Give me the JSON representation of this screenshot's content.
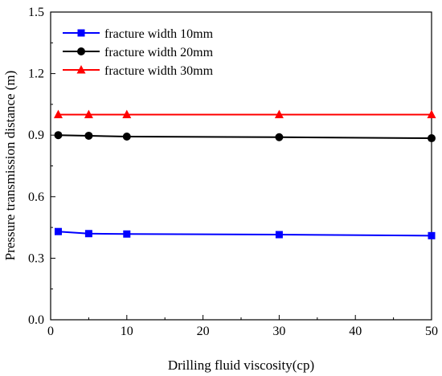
{
  "chart_data": {
    "type": "line",
    "title": "",
    "xlabel": "Drilling fluid viscosity(cp)",
    "ylabel": "Pressure transmission distance (m)",
    "xlim": [
      0,
      50
    ],
    "ylim": [
      0.0,
      1.5
    ],
    "xticks": [
      "0",
      "10",
      "20",
      "30",
      "40",
      "50"
    ],
    "yticks": [
      "0.0",
      "0.3",
      "0.6",
      "0.9",
      "1.2",
      "1.5"
    ],
    "grid": false,
    "legend_position": "top-left",
    "series": [
      {
        "name": "fracture width 10mm",
        "color": "#0000ff",
        "marker": "square",
        "x": [
          1,
          5,
          10,
          30,
          50
        ],
        "y": [
          0.43,
          0.42,
          0.418,
          0.415,
          0.41
        ]
      },
      {
        "name": "fracture width 20mm",
        "color": "#000000",
        "marker": "circle",
        "x": [
          1,
          5,
          10,
          30,
          50
        ],
        "y": [
          0.9,
          0.897,
          0.893,
          0.89,
          0.885
        ]
      },
      {
        "name": "fracture width 30mm",
        "color": "#ff0000",
        "marker": "triangle",
        "x": [
          1,
          5,
          10,
          30,
          50
        ],
        "y": [
          1.0,
          1.0,
          1.0,
          1.0,
          1.0
        ]
      }
    ]
  }
}
